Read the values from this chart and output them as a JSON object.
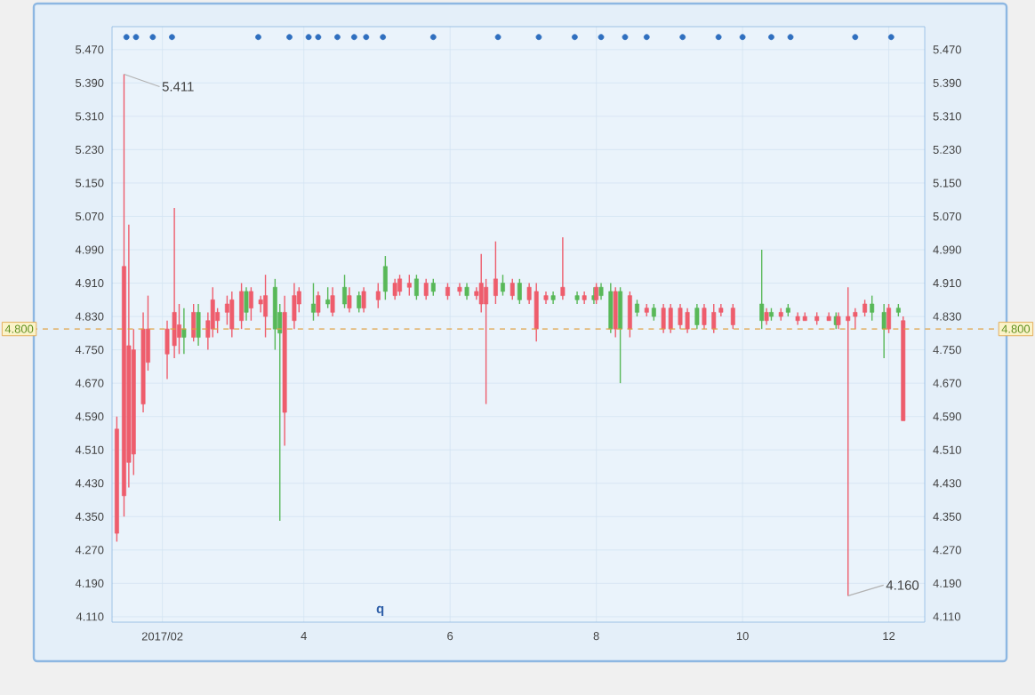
{
  "chart_data": {
    "type": "candlestick",
    "x": [
      "2017-01-13",
      "2017-01-16",
      "2017-01-18",
      "2017-01-20",
      "2017-01-24",
      "2017-01-26",
      "2017-02-03",
      "2017-02-06",
      "2017-02-08",
      "2017-02-10",
      "2017-02-14",
      "2017-02-16",
      "2017-02-20",
      "2017-02-22",
      "2017-02-24",
      "2017-02-28",
      "2017-03-02",
      "2017-03-06",
      "2017-03-08",
      "2017-03-10",
      "2017-03-14",
      "2017-03-16",
      "2017-03-20",
      "2017-03-22",
      "2017-03-24",
      "2017-03-28",
      "2017-03-30",
      "2017-04-05",
      "2017-04-07",
      "2017-04-11",
      "2017-04-13",
      "2017-04-18",
      "2017-04-20",
      "2017-04-24",
      "2017-04-26",
      "2017-05-02",
      "2017-05-05",
      "2017-05-09",
      "2017-05-11",
      "2017-05-15",
      "2017-05-18",
      "2017-05-22",
      "2017-05-25",
      "2017-05-31",
      "2017-06-05",
      "2017-06-08",
      "2017-06-12",
      "2017-06-14",
      "2017-06-16",
      "2017-06-20",
      "2017-06-23",
      "2017-06-27",
      "2017-06-30",
      "2017-07-04",
      "2017-07-07",
      "2017-07-11",
      "2017-07-14",
      "2017-07-18",
      "2017-07-24",
      "2017-07-27",
      "2017-07-31",
      "2017-08-01",
      "2017-08-03",
      "2017-08-07",
      "2017-08-09",
      "2017-08-11",
      "2017-08-15",
      "2017-08-18",
      "2017-08-22",
      "2017-08-25",
      "2017-08-29",
      "2017-09-01",
      "2017-09-05",
      "2017-09-08",
      "2017-09-12",
      "2017-09-15",
      "2017-09-19",
      "2017-09-22",
      "2017-09-27",
      "2017-10-09",
      "2017-10-11",
      "2017-10-13",
      "2017-10-17",
      "2017-10-20",
      "2017-10-24",
      "2017-10-27",
      "2017-11-01",
      "2017-11-06",
      "2017-11-09",
      "2017-11-10",
      "2017-11-14",
      "2017-11-17",
      "2017-11-21",
      "2017-11-24",
      "2017-11-29",
      "2017-12-01",
      "2017-12-05",
      "2017-12-07"
    ],
    "ohlc": [
      [
        4.31,
        4.59,
        4.29,
        4.56
      ],
      [
        4.4,
        5.411,
        4.35,
        4.95
      ],
      [
        4.48,
        5.05,
        4.42,
        4.76
      ],
      [
        4.5,
        4.8,
        4.45,
        4.75
      ],
      [
        4.62,
        4.84,
        4.6,
        4.8
      ],
      [
        4.72,
        4.88,
        4.7,
        4.8
      ],
      [
        4.74,
        4.82,
        4.68,
        4.8
      ],
      [
        4.76,
        5.09,
        4.73,
        4.84
      ],
      [
        4.78,
        4.86,
        4.74,
        4.81
      ],
      [
        4.8,
        4.85,
        4.74,
        4.78
      ],
      [
        4.78,
        4.86,
        4.77,
        4.84
      ],
      [
        4.84,
        4.86,
        4.76,
        4.78
      ],
      [
        4.78,
        4.84,
        4.75,
        4.82
      ],
      [
        4.8,
        4.9,
        4.78,
        4.87
      ],
      [
        4.82,
        4.85,
        4.79,
        4.84
      ],
      [
        4.84,
        4.88,
        4.81,
        4.86
      ],
      [
        4.8,
        4.89,
        4.78,
        4.87
      ],
      [
        4.82,
        4.91,
        4.8,
        4.89
      ],
      [
        4.89,
        4.9,
        4.82,
        4.84
      ],
      [
        4.85,
        4.9,
        4.82,
        4.89
      ],
      [
        4.86,
        4.88,
        4.84,
        4.87
      ],
      [
        4.83,
        4.93,
        4.78,
        4.88
      ],
      [
        4.9,
        4.92,
        4.75,
        4.8
      ],
      [
        4.84,
        4.86,
        4.34,
        4.79
      ],
      [
        4.6,
        4.88,
        4.52,
        4.84
      ],
      [
        4.82,
        4.91,
        4.8,
        4.88
      ],
      [
        4.86,
        4.9,
        4.84,
        4.89
      ],
      [
        4.86,
        4.91,
        4.82,
        4.84
      ],
      [
        4.84,
        4.89,
        4.83,
        4.88
      ],
      [
        4.87,
        4.9,
        4.85,
        4.86
      ],
      [
        4.84,
        4.9,
        4.83,
        4.88
      ],
      [
        4.9,
        4.93,
        4.85,
        4.86
      ],
      [
        4.85,
        4.9,
        4.84,
        4.88
      ],
      [
        4.88,
        4.89,
        4.84,
        4.85
      ],
      [
        4.85,
        4.9,
        4.84,
        4.89
      ],
      [
        4.87,
        4.91,
        4.85,
        4.89
      ],
      [
        4.95,
        4.975,
        4.87,
        4.89
      ],
      [
        4.88,
        4.92,
        4.87,
        4.91
      ],
      [
        4.89,
        4.93,
        4.88,
        4.92
      ],
      [
        4.9,
        4.93,
        4.88,
        4.91
      ],
      [
        4.92,
        4.93,
        4.87,
        4.88
      ],
      [
        4.88,
        4.92,
        4.87,
        4.91
      ],
      [
        4.91,
        4.92,
        4.88,
        4.89
      ],
      [
        4.88,
        4.91,
        4.87,
        4.9
      ],
      [
        4.89,
        4.91,
        4.88,
        4.9
      ],
      [
        4.9,
        4.91,
        4.87,
        4.88
      ],
      [
        4.88,
        4.9,
        4.87,
        4.89
      ],
      [
        4.86,
        4.98,
        4.84,
        4.91
      ],
      [
        4.86,
        4.92,
        4.62,
        4.9
      ],
      [
        4.88,
        5.01,
        4.86,
        4.92
      ],
      [
        4.91,
        4.93,
        4.88,
        4.89
      ],
      [
        4.88,
        4.92,
        4.87,
        4.91
      ],
      [
        4.91,
        4.92,
        4.86,
        4.87
      ],
      [
        4.87,
        4.91,
        4.86,
        4.9
      ],
      [
        4.8,
        4.91,
        4.77,
        4.89
      ],
      [
        4.87,
        4.89,
        4.86,
        4.88
      ],
      [
        4.88,
        4.89,
        4.86,
        4.87
      ],
      [
        4.88,
        5.02,
        4.87,
        4.9
      ],
      [
        4.88,
        4.89,
        4.86,
        4.87
      ],
      [
        4.87,
        4.89,
        4.86,
        4.88
      ],
      [
        4.88,
        4.9,
        4.86,
        4.87
      ],
      [
        4.87,
        4.91,
        4.86,
        4.9
      ],
      [
        4.9,
        4.91,
        4.87,
        4.88
      ],
      [
        4.89,
        4.91,
        4.79,
        4.8
      ],
      [
        4.8,
        4.9,
        4.78,
        4.89
      ],
      [
        4.89,
        4.9,
        4.67,
        4.8
      ],
      [
        4.8,
        4.89,
        4.78,
        4.88
      ],
      [
        4.86,
        4.87,
        4.83,
        4.84
      ],
      [
        4.84,
        4.86,
        4.83,
        4.85
      ],
      [
        4.85,
        4.86,
        4.82,
        4.83
      ],
      [
        4.8,
        4.86,
        4.79,
        4.85
      ],
      [
        4.8,
        4.86,
        4.79,
        4.85
      ],
      [
        4.81,
        4.86,
        4.8,
        4.85
      ],
      [
        4.8,
        4.85,
        4.79,
        4.84
      ],
      [
        4.85,
        4.86,
        4.8,
        4.81
      ],
      [
        4.81,
        4.86,
        4.8,
        4.85
      ],
      [
        4.8,
        4.86,
        4.79,
        4.84
      ],
      [
        4.84,
        4.86,
        4.83,
        4.85
      ],
      [
        4.81,
        4.86,
        4.8,
        4.85
      ],
      [
        4.86,
        4.99,
        4.8,
        4.82
      ],
      [
        4.82,
        4.85,
        4.81,
        4.84
      ],
      [
        4.84,
        4.85,
        4.82,
        4.83
      ],
      [
        4.83,
        4.85,
        4.82,
        4.84
      ],
      [
        4.85,
        4.86,
        4.83,
        4.84
      ],
      [
        4.82,
        4.84,
        4.81,
        4.83
      ],
      [
        4.82,
        4.84,
        4.82,
        4.83
      ],
      [
        4.82,
        4.84,
        4.81,
        4.83
      ],
      [
        4.82,
        4.84,
        4.82,
        4.83
      ],
      [
        4.83,
        4.84,
        4.8,
        4.81
      ],
      [
        4.81,
        4.84,
        4.8,
        4.83
      ],
      [
        4.82,
        4.9,
        4.16,
        4.83
      ],
      [
        4.83,
        4.85,
        4.8,
        4.84
      ],
      [
        4.84,
        4.87,
        4.83,
        4.86
      ],
      [
        4.86,
        4.88,
        4.82,
        4.84
      ],
      [
        4.84,
        4.86,
        4.73,
        4.8
      ],
      [
        4.8,
        4.86,
        4.79,
        4.85
      ],
      [
        4.85,
        4.86,
        4.83,
        4.84
      ],
      [
        4.58,
        4.83,
        4.58,
        4.82
      ]
    ],
    "colors": [
      "#ee5d6c",
      "#ee5d6c",
      "#ee5d6c",
      "#ee5d6c",
      "#ee5d6c",
      "#ee5d6c",
      "#ee5d6c",
      "#ee5d6c",
      "#ee5d6c",
      "#58b858",
      "#ee5d6c",
      "#58b858",
      "#ee5d6c",
      "#ee5d6c",
      "#ee5d6c",
      "#ee5d6c",
      "#ee5d6c",
      "#ee5d6c",
      "#58b858",
      "#ee5d6c",
      "#ee5d6c",
      "#ee5d6c",
      "#58b858",
      "#58b858",
      "#ee5d6c",
      "#ee5d6c",
      "#ee5d6c",
      "#58b858",
      "#ee5d6c",
      "#58b858",
      "#ee5d6c",
      "#58b858",
      "#ee5d6c",
      "#58b858",
      "#ee5d6c",
      "#ee5d6c",
      "#58b858",
      "#ee5d6c",
      "#ee5d6c",
      "#ee5d6c",
      "#58b858",
      "#ee5d6c",
      "#58b858",
      "#ee5d6c",
      "#ee5d6c",
      "#58b858",
      "#ee5d6c",
      "#ee5d6c",
      "#ee5d6c",
      "#ee5d6c",
      "#58b858",
      "#ee5d6c",
      "#58b858",
      "#ee5d6c",
      "#ee5d6c",
      "#ee5d6c",
      "#58b858",
      "#ee5d6c",
      "#58b858",
      "#ee5d6c",
      "#58b858",
      "#ee5d6c",
      "#58b858",
      "#58b858",
      "#ee5d6c",
      "#58b858",
      "#ee5d6c",
      "#58b858",
      "#ee5d6c",
      "#58b858",
      "#ee5d6c",
      "#ee5d6c",
      "#ee5d6c",
      "#ee5d6c",
      "#58b858",
      "#ee5d6c",
      "#ee5d6c",
      "#ee5d6c",
      "#ee5d6c",
      "#58b858",
      "#ee5d6c",
      "#58b858",
      "#ee5d6c",
      "#58b858",
      "#ee5d6c",
      "#ee5d6c",
      "#ee5d6c",
      "#ee5d6c",
      "#58b858",
      "#ee5d6c",
      "#ee5d6c",
      "#ee5d6c",
      "#ee5d6c",
      "#58b858",
      "#58b858",
      "#ee5d6c",
      "#58b858",
      "#ee5d6c"
    ],
    "series": [
      {
        "type": "scatter",
        "marker": "circle",
        "color": "#2f6fbf",
        "x": [
          "2017-01-17",
          "2017-01-21",
          "2017-01-28",
          "2017-02-05",
          "2017-03-13",
          "2017-03-26",
          "2017-04-03",
          "2017-04-07",
          "2017-04-15",
          "2017-04-22",
          "2017-04-27",
          "2017-05-04",
          "2017-05-25",
          "2017-06-21",
          "2017-07-08",
          "2017-07-23",
          "2017-08-03",
          "2017-08-13",
          "2017-08-22",
          "2017-09-06",
          "2017-09-21",
          "2017-10-01",
          "2017-10-13",
          "2017-10-21",
          "2017-11-17",
          "2017-12-02"
        ],
        "values": [
          5.5,
          5.5,
          5.5,
          5.5,
          5.5,
          5.5,
          5.5,
          5.5,
          5.5,
          5.5,
          5.5,
          5.5,
          5.5,
          5.5,
          5.5,
          5.5,
          5.5,
          5.5,
          5.5,
          5.5,
          5.5,
          5.5,
          5.5,
          5.5,
          5.5,
          5.5
        ]
      }
    ],
    "xlim": [
      "2017-01-11",
      "2017-12-16"
    ],
    "xticks": [
      {
        "value": "2017-02-01",
        "label": "2017/02"
      },
      {
        "value": "2017-04-01",
        "label": "4"
      },
      {
        "value": "2017-06-01",
        "label": "6"
      },
      {
        "value": "2017-08-01",
        "label": "8"
      },
      {
        "value": "2017-10-01",
        "label": "10"
      },
      {
        "value": "2017-12-01",
        "label": "12"
      }
    ],
    "ylim": [
      4.097,
      5.525
    ],
    "yticks": [
      {
        "value": 4.11,
        "label": "4.110"
      },
      {
        "value": 4.19,
        "label": "4.190"
      },
      {
        "value": 4.27,
        "label": "4.270"
      },
      {
        "value": 4.35,
        "label": "4.350"
      },
      {
        "value": 4.43,
        "label": "4.430"
      },
      {
        "value": 4.51,
        "label": "4.510"
      },
      {
        "value": 4.59,
        "label": "4.590"
      },
      {
        "value": 4.67,
        "label": "4.670"
      },
      {
        "value": 4.75,
        "label": "4.750"
      },
      {
        "value": 4.83,
        "label": "4.830"
      },
      {
        "value": 4.91,
        "label": "4.910"
      },
      {
        "value": 4.99,
        "label": "4.990"
      },
      {
        "value": 5.07,
        "label": "5.070"
      },
      {
        "value": 5.15,
        "label": "5.150"
      },
      {
        "value": 5.23,
        "label": "5.230"
      },
      {
        "value": 5.31,
        "label": "5.310"
      },
      {
        "value": 5.39,
        "label": "5.390"
      },
      {
        "value": 5.47,
        "label": "5.470"
      }
    ],
    "y2lim": [
      4.097,
      5.525
    ],
    "y2ticks": [
      {
        "value": 4.11,
        "label": "4.110"
      },
      {
        "value": 4.19,
        "label": "4.190"
      },
      {
        "value": 4.27,
        "label": "4.270"
      },
      {
        "value": 4.35,
        "label": "4.350"
      },
      {
        "value": 4.43,
        "label": "4.430"
      },
      {
        "value": 4.51,
        "label": "4.510"
      },
      {
        "value": 4.59,
        "label": "4.590"
      },
      {
        "value": 4.67,
        "label": "4.670"
      },
      {
        "value": 4.75,
        "label": "4.750"
      },
      {
        "value": 4.83,
        "label": "4.830"
      },
      {
        "value": 4.91,
        "label": "4.910"
      },
      {
        "value": 4.99,
        "label": "4.990"
      },
      {
        "value": 5.07,
        "label": "5.070"
      },
      {
        "value": 5.15,
        "label": "5.150"
      },
      {
        "value": 5.23,
        "label": "5.230"
      },
      {
        "value": 5.31,
        "label": "5.310"
      },
      {
        "value": 5.39,
        "label": "5.390"
      },
      {
        "value": 5.47,
        "label": "5.470"
      }
    ],
    "grid": true,
    "ref_lines": [
      {
        "axis": "y",
        "value": 4.8,
        "label": "4.800",
        "color": "#e0a040",
        "line_style": "dashed"
      }
    ],
    "annotations": [
      {
        "text": "5.411",
        "x": "2017-01-16",
        "y": 5.411
      },
      {
        "text": "4.160",
        "x": "2017-11-14",
        "y": 4.16
      },
      "q"
    ]
  }
}
